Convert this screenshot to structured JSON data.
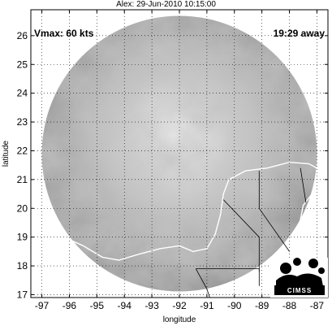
{
  "title": "Alex: 29-Jun-2010 10:15:00",
  "overlay": {
    "vmax": "Vmax: 60 kts",
    "time_away": "19:29 away"
  },
  "logo": {
    "text": "CIMSS"
  },
  "chart_data": {
    "type": "map",
    "xlabel": "longitude",
    "ylabel": "latitude",
    "xlim": [
      -97.4,
      -86.6
    ],
    "ylim": [
      16.9,
      26.9
    ],
    "x_ticks": [
      -97,
      -96,
      -95,
      -94,
      -93,
      -92,
      -91,
      -90,
      -89,
      -88,
      -87
    ],
    "x_tick_labels": [
      "-97",
      "-96",
      "-95",
      "-94",
      "-93",
      "-92",
      "-91",
      "-90",
      "-89",
      "-88",
      "-87"
    ],
    "y_ticks": [
      17,
      18,
      19,
      20,
      21,
      22,
      23,
      24,
      25,
      26
    ],
    "y_tick_labels": [
      "17",
      "18",
      "19",
      "20",
      "21",
      "22",
      "23",
      "24",
      "25",
      "26"
    ],
    "grid": true,
    "image_center": [
      -92.0,
      21.9
    ],
    "image_radius_deg": 5.0,
    "colors": {
      "coast": "#ffffff",
      "border": "#000000",
      "frame": "#000000",
      "background": "#ffffff"
    }
  }
}
